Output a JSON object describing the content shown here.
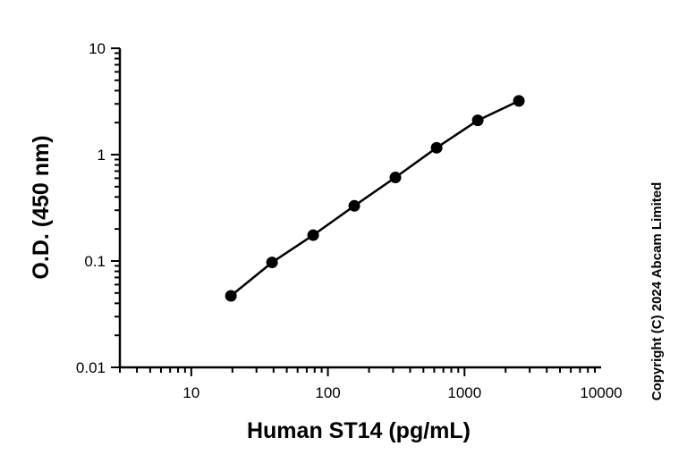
{
  "chart_data": {
    "type": "scatter",
    "xlabel": "Human ST14 (pg/mL)",
    "ylabel": "O.D. (450 nm)",
    "x_scale": "log",
    "y_scale": "log",
    "xlim": [
      3,
      10000
    ],
    "ylim": [
      0.01,
      10
    ],
    "x_tick_values": [
      10,
      100,
      1000,
      10000
    ],
    "x_tick_labels": [
      "10",
      "100",
      "1000",
      "10000"
    ],
    "y_tick_values": [
      0.01,
      0.1,
      1,
      10
    ],
    "y_tick_labels": [
      "0.01",
      "0.1",
      "1",
      "10"
    ],
    "grid": false,
    "legend": "none",
    "marker_color": "#000000",
    "line_color": "#000000",
    "series": [
      {
        "x": [
          19.5,
          39,
          78,
          156,
          312,
          625,
          1250,
          2500
        ],
        "y": [
          0.047,
          0.097,
          0.175,
          0.33,
          0.61,
          1.16,
          2.1,
          3.2
        ]
      }
    ]
  },
  "copyright": "Copyright (C) 2024 Abcam Limited"
}
